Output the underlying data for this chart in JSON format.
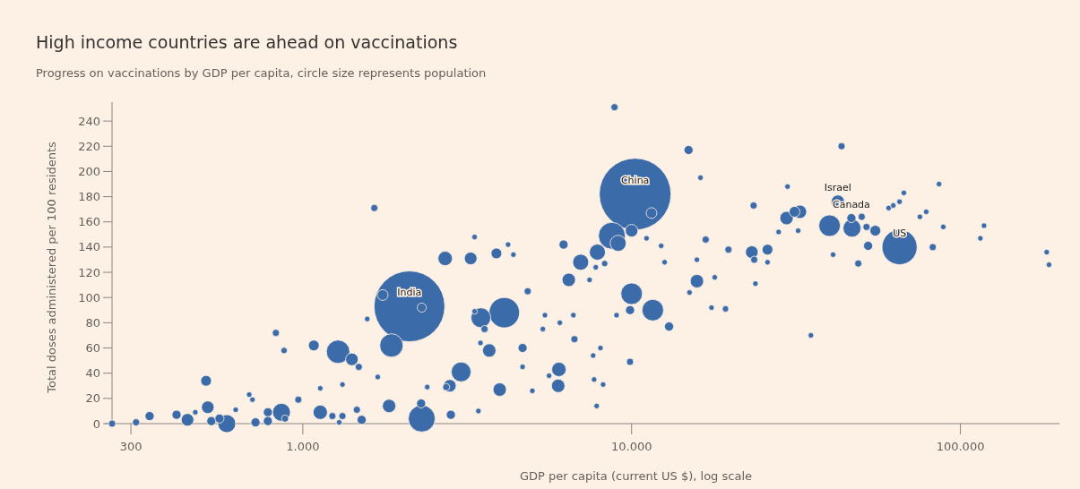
{
  "chart_data": {
    "type": "bubble",
    "title": "High income countries are ahead on vaccinations",
    "subtitle": "Progress on vaccinations by GDP per capita, circle size represents population",
    "xlabel": "GDP per capita (current US $), log scale",
    "ylabel": "Total doses administered per 100 residents",
    "log": "x",
    "xlim": [
      250,
      200000
    ],
    "xticks": [
      300,
      {
        "value": 1000,
        "label": "1.000"
      },
      {
        "value": 10000,
        "label": "10.000"
      },
      {
        "value": 100000,
        "label": "100.000"
      }
    ],
    "ylim": [
      0,
      255
    ],
    "yticks": [
      0,
      20,
      40,
      60,
      80,
      100,
      120,
      140,
      160,
      180,
      200,
      220,
      240
    ],
    "grid": false,
    "series": [
      {
        "color": "#3b6ba8",
        "x": [
          263,
          311,
          342,
          413,
          446,
          471,
          508,
          514,
          527,
          558,
          587,
          625,
          687,
          703,
          718,
          783,
          783,
          861,
          883,
          969,
          828,
          877,
          1080,
          1280,
          1410,
          1480,
          1130,
          1230,
          1320,
          1290,
          1130,
          1320,
          1460,
          1510,
          1650,
          1570,
          1860,
          2110,
          1750,
          2300,
          1690,
          1830,
          2300,
          2290,
          2390,
          2710,
          2730,
          8870,
          14900,
          10250,
          11500,
          10000,
          8710,
          9100,
          7870,
          7000,
          8280,
          7780,
          6440,
          7450,
          6210,
          3240,
          3880,
          4210,
          4370,
          3330,
          4830,
          4100,
          3480,
          3570,
          3330,
          5450,
          5370,
          6050,
          6650,
          6700,
          10000,
          9890,
          11600,
          13000,
          9000,
          3470,
          3690,
          4660,
          3030,
          2800,
          3970,
          2820,
          3420,
          4660,
          4990,
          6010,
          5980,
          5610,
          7640,
          8040,
          7690,
          8190,
          7830,
          9890,
          12300,
          11100,
          16200,
          16800,
          19700,
          15800,
          15800,
          15000,
          17900,
          17500,
          19300,
          12600,
          43500,
          29800,
          42400,
          23500,
          32500,
          31300,
          29600,
          40000,
          46600,
          46800,
          50100,
          51800,
          55100,
          60500,
          62500,
          65300,
          67300,
          65300,
          52400,
          48900,
          75300,
          78700,
          82400,
          32100,
          28000,
          23200,
          23600,
          25900,
          25900,
          23800,
          35100,
          41000,
          115000,
          186000,
          183000,
          118000,
          88700,
          86100
        ],
        "values": [
          0,
          1,
          6,
          7,
          3,
          9,
          34,
          13,
          2,
          4,
          0,
          11,
          23,
          19,
          1,
          9,
          2,
          9,
          4,
          19,
          72,
          58,
          62,
          57,
          51,
          45,
          9,
          6,
          6,
          1,
          28,
          31,
          11,
          3,
          171,
          83,
          62,
          93,
          102,
          92,
          37,
          14,
          4,
          16,
          29,
          131,
          29,
          251,
          217,
          182,
          167,
          153,
          149,
          143,
          136,
          128,
          127,
          124,
          114,
          114,
          142,
          131,
          135,
          142,
          134,
          148,
          105,
          88,
          84,
          75,
          89,
          86,
          75,
          80,
          86,
          67,
          103,
          90,
          90,
          77,
          86,
          64,
          58,
          60,
          41,
          30,
          27,
          7,
          10,
          45,
          26,
          43,
          30,
          38,
          54,
          60,
          35,
          31,
          14,
          49,
          141,
          147,
          195,
          146,
          138,
          130,
          113,
          104,
          116,
          92,
          91,
          128,
          220,
          188,
          176,
          173,
          168,
          168,
          163,
          157,
          163,
          155,
          164,
          156,
          153,
          171,
          173,
          176,
          183,
          140,
          141,
          127,
          164,
          168,
          140,
          153,
          152,
          136,
          130,
          138,
          128,
          111,
          70,
          134,
          147,
          126,
          136,
          157,
          156,
          190
        ],
        "sizes": [
          0.01,
          0.01,
          0.016,
          0.016,
          0.031,
          0.006,
          0.0225,
          0.031,
          0.016,
          0.016,
          0.0625,
          0.006,
          0.006,
          0.006,
          0.016,
          0.016,
          0.016,
          0.0625,
          0.01,
          0.01,
          0.01,
          0.008,
          0.0225,
          0.106,
          0.031,
          0.01,
          0.04,
          0.01,
          0.01,
          0.006,
          0.006,
          0.006,
          0.01,
          0.016,
          0.01,
          0.006,
          0.106,
          0.975,
          0.0225,
          0.016,
          0.006,
          0.035,
          0.14,
          0.016,
          0.006,
          0.04,
          0.01,
          0.01,
          0.016,
          1,
          0.0225,
          0.031,
          0.14,
          0.05,
          0.05,
          0.05,
          0.008,
          0.006,
          0.035,
          0.006,
          0.016,
          0.031,
          0.0225,
          0.006,
          0.006,
          0.006,
          0.01,
          0.18,
          0.076,
          0.01,
          0.006,
          0.006,
          0.006,
          0.006,
          0.006,
          0.01,
          0.09,
          0.016,
          0.09,
          0.016,
          0.006,
          0.006,
          0.035,
          0.016,
          0.076,
          0.031,
          0.035,
          0.016,
          0.006,
          0.006,
          0.006,
          0.04,
          0.035,
          0.006,
          0.006,
          0.006,
          0.006,
          0.006,
          0.006,
          0.01,
          0.006,
          0.006,
          0.006,
          0.01,
          0.01,
          0.006,
          0.035,
          0.006,
          0.006,
          0.006,
          0.008,
          0.006,
          0.01,
          0.006,
          0.035,
          0.01,
          0.035,
          0.0225,
          0.035,
          0.09,
          0.016,
          0.0625,
          0.01,
          0.01,
          0.0225,
          0.006,
          0.006,
          0.006,
          0.006,
          0.24,
          0.016,
          0.01,
          0.006,
          0.006,
          0.01,
          0.006,
          0.006,
          0.031,
          0.01,
          0.0225,
          0.006,
          0.006,
          0.006,
          0.006,
          0.006,
          0.006,
          0.006,
          0.006,
          0.006,
          0.006
        ]
      }
    ],
    "annotations": [
      {
        "text": "India",
        "x": 2110,
        "y": 93
      },
      {
        "text": "China",
        "x": 10250,
        "y": 182
      },
      {
        "text": "Israel",
        "x": 42400,
        "y": 176
      },
      {
        "text": "Canada",
        "x": 46600,
        "y": 163
      },
      {
        "text": "US",
        "x": 65300,
        "y": 140
      }
    ]
  }
}
